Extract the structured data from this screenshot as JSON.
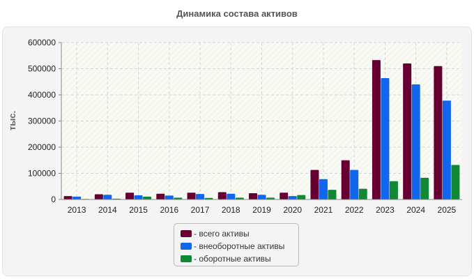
{
  "chart_data": {
    "type": "bar",
    "title": "Динамика состава активов",
    "ylabel": "тыс.",
    "xlabel": "",
    "ylim": [
      0,
      600000
    ],
    "yticks": [
      0,
      100000,
      200000,
      300000,
      400000,
      500000,
      600000
    ],
    "grid": true,
    "legend_position": "bottom",
    "categories": [
      "2013",
      "2014",
      "2015",
      "2016",
      "2017",
      "2018",
      "2019",
      "2020",
      "2021",
      "2022",
      "2023",
      "2024",
      "2025"
    ],
    "series": [
      {
        "name": "- всего активы",
        "color": "#660033",
        "values": [
          13000,
          20000,
          26000,
          22000,
          26000,
          28000,
          24000,
          26000,
          113000,
          150000,
          533000,
          520000,
          510000
        ]
      },
      {
        "name": "- внеоборотные активы",
        "color": "#1166ee",
        "values": [
          11000,
          18000,
          16000,
          15000,
          21000,
          22000,
          18000,
          13000,
          78000,
          113000,
          464000,
          440000,
          378000
        ]
      },
      {
        "name": "- оборотные активы",
        "color": "#118833",
        "values": [
          2000,
          3000,
          11000,
          7000,
          6000,
          7000,
          7000,
          17000,
          37000,
          41000,
          70000,
          83000,
          132000
        ]
      }
    ]
  }
}
